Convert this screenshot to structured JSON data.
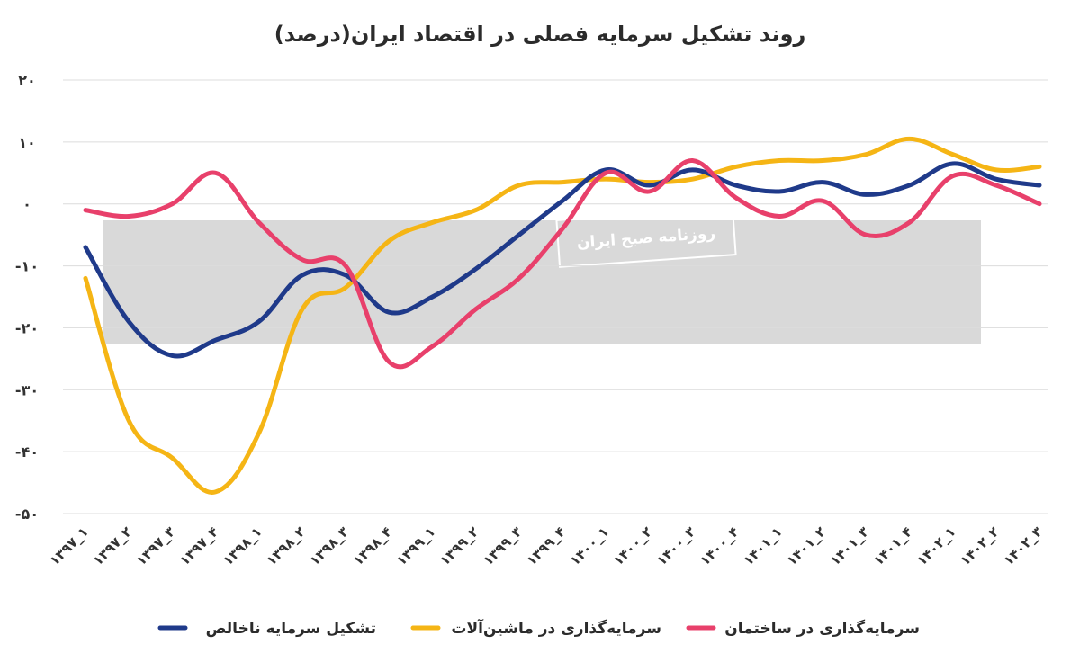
{
  "chart_data": {
    "type": "line",
    "title": "روند تشکیل سرمایه فصلی در اقتصاد ایران(درصد)",
    "categories": [
      "۱۳۹۷_۱",
      "۱۳۹۷_۲",
      "۱۳۹۷_۳",
      "۱۳۹۷_۴",
      "۱۳۹۸_۱",
      "۱۳۹۸_۲",
      "۱۳۹۸_۳",
      "۱۳۹۸_۴",
      "۱۳۹۹_۱",
      "۱۳۹۹_۲",
      "۱۳۹۹_۳",
      "۱۳۹۹_۴",
      "۱۴۰۰_۱",
      "۱۴۰۰_۲",
      "۱۴۰۰_۳",
      "۱۴۰۰_۴",
      "۱۴۰۱_۱",
      "۱۴۰۱_۲",
      "۱۴۰۱_۳",
      "۱۴۰۱_۴",
      "۱۴۰۲_۱",
      "۱۴۰۲_۲",
      "۱۴۰۲_۳"
    ],
    "yticks": [
      20,
      10,
      0,
      -10,
      -20,
      -30,
      -40,
      -50
    ],
    "ytick_labels": [
      "۲۰",
      "۱۰",
      "۰",
      "-۱۰",
      "-۲۰",
      "-۳۰",
      "-۴۰",
      "-۵۰"
    ],
    "ylim": [
      -50,
      20
    ],
    "grid": true,
    "legend_position": "bottom",
    "series": [
      {
        "name": "تشکیل سرمایه ناخالص",
        "color": "#1f3a8a",
        "values": [
          -7,
          -19,
          -24.5,
          -22,
          -19,
          -11.5,
          -11.5,
          -17.5,
          -15,
          -10.5,
          -5,
          0.5,
          5.5,
          3,
          5.5,
          3,
          2,
          3.5,
          1.5,
          3,
          6.5,
          4,
          3
        ]
      },
      {
        "name": "سرمایه‌گذاری در ماشین‌آلات",
        "color": "#f5b515",
        "values": [
          -12,
          -35,
          -41,
          -46.5,
          -37,
          -17,
          -13.5,
          -6,
          -3,
          -1,
          3,
          3.5,
          4,
          3.5,
          4,
          6,
          7,
          7,
          8,
          10.5,
          8,
          5.5,
          6
        ]
      },
      {
        "name": "سرمایه‌گذاری در ساختمان",
        "color": "#e8406b",
        "values": [
          -1,
          -2,
          0,
          5,
          -3,
          -9,
          -10,
          -25.5,
          -23,
          -17,
          -12,
          -4,
          5,
          2,
          7,
          1,
          -2,
          0.5,
          -5,
          -3,
          4.5,
          3,
          0
        ]
      }
    ]
  },
  "watermark": {
    "label": "روزنامه صبح ایران"
  }
}
